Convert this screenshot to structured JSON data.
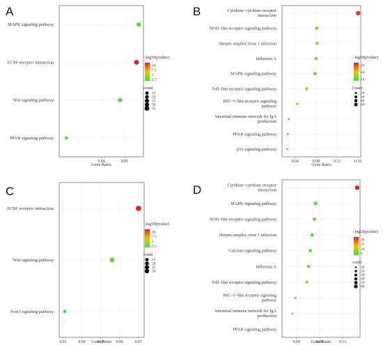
{
  "chart_data": [
    {
      "type": "scatter",
      "panel": "A",
      "xlabel": "Gene Ratio",
      "x_ticks": [
        0.04,
        0.05
      ],
      "xlim": [
        0.022,
        0.058
      ],
      "categories": [
        "MAPK signaling pathway",
        "ECM−receptor interaction",
        "Wnt signaling pathway",
        "PPAR signaling pathway"
      ],
      "points": [
        {
          "category": "MAPK signaling pathway",
          "x": 0.056,
          "count": 22,
          "neglog10p": 3.5
        },
        {
          "category": "ECM−receptor interaction",
          "x": 0.055,
          "count": 24,
          "neglog10p": 10.0
        },
        {
          "category": "Wnt signaling pathway",
          "x": 0.048,
          "count": 18,
          "neglog10p": 3.0
        },
        {
          "category": "PPAR signaling pathway",
          "x": 0.025,
          "count": 9,
          "neglog10p": 2.6
        }
      ],
      "color_legend": {
        "title": "−log10(pvalue)",
        "ticks": [
          10.0,
          7.5,
          5.0,
          2.5
        ],
        "range": [
          2.5,
          10.0
        ]
      },
      "size_legend": {
        "title": "count",
        "values": [
          15,
          20,
          25,
          30,
          35
        ],
        "range": [
          5,
          35
        ]
      }
    },
    {
      "type": "scatter",
      "panel": "B",
      "xlabel": "Gene Ratio",
      "x_ticks": [
        0.04,
        0.08,
        0.12,
        0.16
      ],
      "xlim": [
        0.015,
        0.165
      ],
      "categories": [
        "Cytokine−cytokine receptor interaction",
        "NOD−like receptor signaling pathway",
        "Herpes simplex virus 1 infection",
        "Influenza A",
        "MAPK signaling pathway",
        "Toll−like receptor signaling pathway",
        "RIG−I−like receptor signaling pathway",
        "Intestinal immune network for IgA production",
        "PPAR signaling pathway",
        "p53 signaling pathway"
      ],
      "points": [
        {
          "category": "Cytokine−cytokine receptor interaction",
          "x": 0.16,
          "count": 90,
          "neglog10p": 28
        },
        {
          "category": "NOD−like receptor signaling pathway",
          "x": 0.081,
          "count": 42,
          "neglog10p": 12
        },
        {
          "category": "Herpes simplex virus 1 infection",
          "x": 0.082,
          "count": 44,
          "neglog10p": 11
        },
        {
          "category": "Influenza A",
          "x": 0.08,
          "count": 40,
          "neglog10p": 11
        },
        {
          "category": "MAPK signaling pathway",
          "x": 0.078,
          "count": 38,
          "neglog10p": 7
        },
        {
          "category": "Toll−like receptor signaling pathway",
          "x": 0.062,
          "count": 30,
          "neglog10p": 11
        },
        {
          "category": "RIG−I−like receptor signaling pathway",
          "x": 0.044,
          "count": 22,
          "neglog10p": 11
        },
        {
          "category": "Intestinal immune network for IgA production",
          "x": 0.028,
          "count": 14,
          "neglog10p": 6
        },
        {
          "category": "PPAR signaling pathway",
          "x": 0.026,
          "count": 13,
          "neglog10p": 5
        },
        {
          "category": "p53 signaling pathway",
          "x": 0.025,
          "count": 12,
          "neglog10p": 5
        }
      ],
      "color_legend": {
        "title": "−log10(pvalue)",
        "ticks": [
          20,
          30,
          10
        ],
        "range": [
          5,
          30
        ]
      },
      "size_legend": {
        "title": "Count",
        "values": [
          20,
          40,
          60,
          80
        ],
        "range": [
          10,
          90
        ]
      }
    },
    {
      "type": "scatter",
      "panel": "C",
      "xlabel": "Gene Ratio",
      "x_ticks": [
        0.03,
        0.04,
        0.05,
        0.06,
        0.07
      ],
      "xlim": [
        0.028,
        0.073
      ],
      "categories": [
        "ECM−receptor interaction",
        "Wnt signaling pathway",
        "FoxO signaling pathway"
      ],
      "points": [
        {
          "category": "ECM−receptor interaction",
          "x": 0.07,
          "count": 30,
          "neglog10p": 10.0
        },
        {
          "category": "Wnt signaling pathway",
          "x": 0.056,
          "count": 24,
          "neglog10p": 3.2
        },
        {
          "category": "FoxO signaling pathway",
          "x": 0.031,
          "count": 10,
          "neglog10p": 2.6
        }
      ],
      "color_legend": {
        "title": "−log10(pvalue)",
        "ticks": [
          10.0,
          7.5,
          5.0,
          2.5
        ],
        "range": [
          2.5,
          10.0
        ]
      },
      "size_legend": {
        "title": "count",
        "values": [
          15,
          20,
          25,
          30
        ],
        "range": [
          5,
          30
        ]
      }
    },
    {
      "type": "scatter",
      "panel": "D",
      "xlabel": "Gene Ratio",
      "x_ticks": [
        0.04,
        0.08,
        0.12
      ],
      "xlim": [
        0.015,
        0.15
      ],
      "categories": [
        "Cytokine−cytokine receptor interaction",
        "MAPK signaling pathway",
        "NOD−like receptor signaling pathway",
        "Herpes simplex virus 1 infection",
        "Calcium signaling pathway",
        "Influenza A",
        "Toll−like receptor signaling pathway",
        "RIG−I−like receptor signaling pathway",
        "Intestinal immune network for IgA production",
        "PPAR signaling pathway"
      ],
      "points": [
        {
          "category": "Cytokine−cytokine receptor interaction",
          "x": 0.145,
          "count": 60,
          "neglog10p": 26
        },
        {
          "category": "MAPK signaling pathway",
          "x": 0.073,
          "count": 34,
          "neglog10p": 6
        },
        {
          "category": "NOD−like receptor signaling pathway",
          "x": 0.071,
          "count": 32,
          "neglog10p": 8
        },
        {
          "category": "Herpes simplex virus 1 infection",
          "x": 0.067,
          "count": 30,
          "neglog10p": 6
        },
        {
          "category": "Calcium signaling pathway",
          "x": 0.064,
          "count": 28,
          "neglog10p": 6
        },
        {
          "category": "Influenza A",
          "x": 0.061,
          "count": 26,
          "neglog10p": 8
        },
        {
          "category": "Toll−like receptor signaling pathway",
          "x": 0.058,
          "count": 22,
          "neglog10p": 10
        },
        {
          "category": "RIG−I−like receptor signaling pathway",
          "x": 0.038,
          "count": 14,
          "neglog10p": 9
        },
        {
          "category": "Intestinal immune network for IgA production",
          "x": 0.033,
          "count": 10,
          "neglog10p": 12
        },
        {
          "category": "PPAR signaling pathway",
          "x": null,
          "count": null,
          "neglog10p": null
        }
      ],
      "color_legend": {
        "title": "−log10(pvalue)",
        "ticks": [
          20,
          15,
          10,
          5
        ],
        "range": [
          5,
          26
        ]
      },
      "size_legend": {
        "title": "count",
        "values": [
          10,
          20,
          30,
          40,
          50,
          60
        ],
        "range": [
          5,
          60
        ]
      }
    }
  ],
  "colors": {
    "low": "#2ee82e",
    "mid": "#f5c400",
    "high": "#ee1c1c",
    "grid": "#ececec"
  }
}
